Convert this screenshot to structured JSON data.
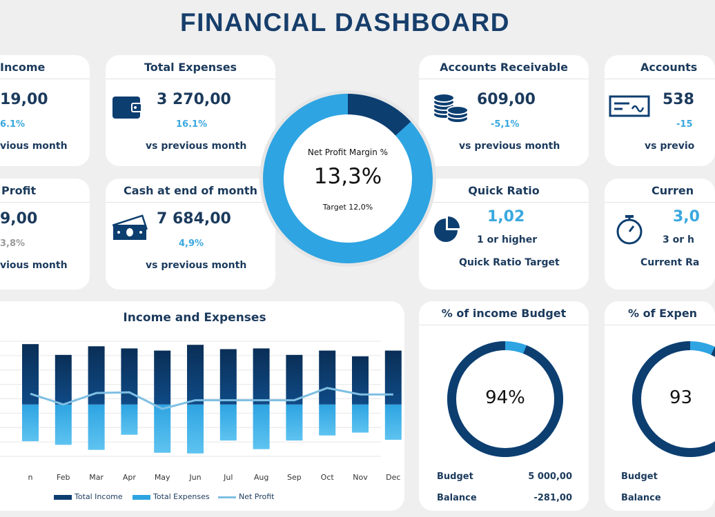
{
  "title": "FINANCIAL DASHBOARD",
  "colors": {
    "navy": "#0d3e70",
    "blue": "#2ea4e2",
    "teal": "#3aa8df",
    "line": "#7fbfe3"
  },
  "cards": {
    "income": {
      "title": "Income",
      "value": "19,00",
      "change": "6.1%",
      "sub": "vious month"
    },
    "expenses": {
      "title": "Total Expenses",
      "value": "3 270,00",
      "change": "16.1%",
      "sub": "vs previous month",
      "icon": "wallet-icon"
    },
    "receivable": {
      "title": "Accounts Receivable",
      "value": "609,00",
      "change": "-5,1%",
      "sub": "vs previous month",
      "icon": "coins-icon"
    },
    "payable": {
      "title": "Accounts",
      "value": "538",
      "change": "-15",
      "sub": "vs previo",
      "icon": "cheque-icon"
    },
    "profit": {
      "title": "Profit",
      "value": "9,00",
      "change": "3,8%",
      "sub": "vious month"
    },
    "cash": {
      "title": "Cash at end of month",
      "value": "7 684,00",
      "change": "4,9%",
      "sub": "vs previous month",
      "icon": "cash-icon"
    },
    "quick": {
      "title": "Quick Ratio",
      "value": "1,02",
      "target": "1 or higher",
      "sub": "Quick Ratio Target",
      "icon": "pie-icon"
    },
    "current": {
      "title": "Curren",
      "value": "3,0",
      "target": "3 or h",
      "sub": "Current Ra",
      "icon": "stopwatch-icon"
    }
  },
  "margin": {
    "label": "Net Profit Margin %",
    "value": "13,3%",
    "target": "Target 12,0%",
    "fraction": 0.133
  },
  "income_budget": {
    "title": "% of income Budget",
    "value": "94%",
    "fraction": 0.94,
    "budget_label": "Budget",
    "budget_value": "5 000,00",
    "balance_label": "Balance",
    "balance_value": "-281,00"
  },
  "expense_budget": {
    "title": "% of Expen",
    "value": "93",
    "fraction": 0.93,
    "budget_label": "Budget",
    "balance_label": "Balance"
  },
  "chart_data": {
    "type": "bar",
    "title": "Income and Expenses",
    "categories": [
      "n",
      "Feb",
      "Mar",
      "Apr",
      "May",
      "Jun",
      "Jul",
      "Aug",
      "Sep",
      "Oct",
      "Nov",
      "Dec"
    ],
    "series": [
      {
        "name": "Total Income",
        "type": "bar",
        "values": [
          4200,
          3450,
          4050,
          3900,
          3750,
          4150,
          3850,
          3900,
          3450,
          3750,
          3350,
          3750
        ]
      },
      {
        "name": "Total Expenses",
        "type": "bar",
        "values": [
          -2550,
          -2800,
          -3150,
          -2100,
          -3350,
          -3400,
          -2500,
          -3100,
          -2500,
          -2150,
          -1950,
          -2450
        ]
      },
      {
        "name": "Net Profit",
        "type": "line",
        "values": [
          750,
          0,
          800,
          850,
          -300,
          300,
          300,
          300,
          300,
          1150,
          700,
          700
        ]
      }
    ],
    "ylim": [
      -3600,
      4400
    ],
    "legend": "bottom"
  }
}
